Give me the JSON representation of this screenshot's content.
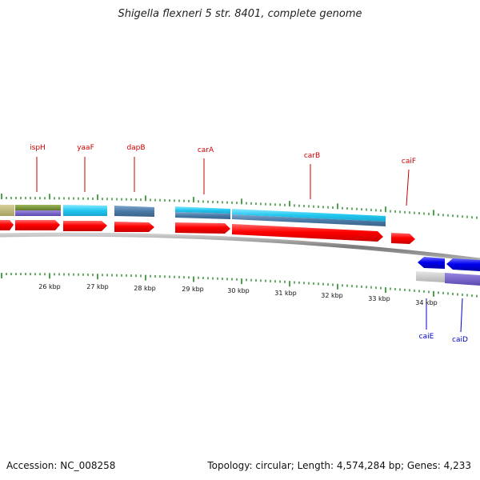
{
  "title": "Shigella flexneri 5 str. 8401, complete genome",
  "footer": {
    "accession": "Accession: NC_008258",
    "info": "Topology: circular; Length: 4,574,284 bp; Genes: 4,233"
  },
  "colors": {
    "backbone": "#888888",
    "tick": "#228b22",
    "forward_cds": "#ff0000",
    "reverse_cds": "#0000ee",
    "forward_label": "#cc0000",
    "reverse_label": "#0000cc"
  },
  "scale_labels": [
    "26 kbp",
    "27 kbp",
    "28 kbp",
    "29 kbp",
    "30 kbp",
    "31 kbp",
    "32 kbp",
    "33 kbp",
    "34 kbp"
  ],
  "genes_forward": [
    {
      "name": "ispH",
      "strand": "+"
    },
    {
      "name": "yaaF",
      "strand": "+"
    },
    {
      "name": "dapB",
      "strand": "+"
    },
    {
      "name": "carA",
      "strand": "+"
    },
    {
      "name": "carB",
      "strand": "+"
    },
    {
      "name": "caiF",
      "strand": "+"
    }
  ],
  "genes_reverse": [
    {
      "name": "caiE",
      "strand": "-"
    },
    {
      "name": "caiD",
      "strand": "-"
    }
  ]
}
